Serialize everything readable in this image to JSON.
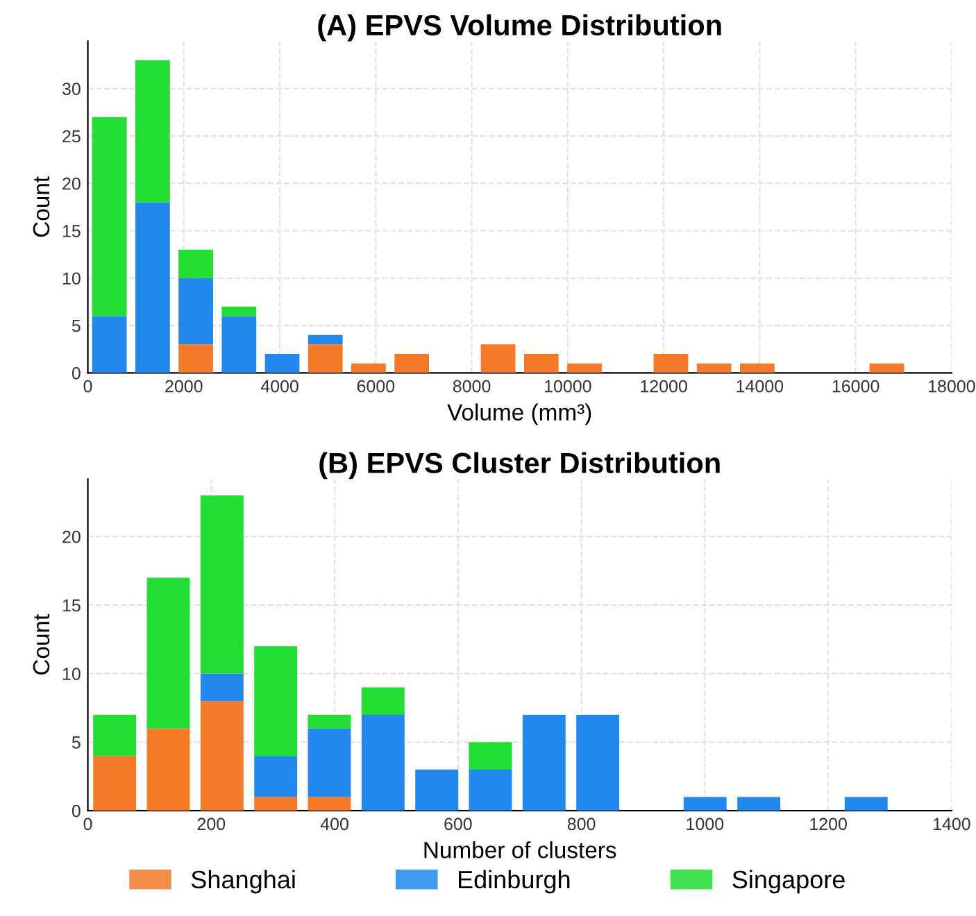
{
  "chart_data": [
    {
      "type": "bar",
      "title": "(A) EPVS Volume Distribution",
      "xlabel": "Volume (mm³)",
      "ylabel": "Count",
      "stacked": true,
      "x": [
        450,
        1350,
        2250,
        3150,
        4050,
        4950,
        5850,
        6750,
        7650,
        8550,
        9450,
        10350,
        11250,
        12150,
        13050,
        13950,
        14850,
        15750,
        16650
      ],
      "series": [
        {
          "name": "Shanghai",
          "color": "#f47a2a",
          "values": [
            0,
            0,
            3,
            0,
            0,
            3,
            1,
            2,
            0,
            3,
            2,
            1,
            0,
            2,
            1,
            1,
            0,
            0,
            1
          ]
        },
        {
          "name": "Edinburgh",
          "color": "#2288ee",
          "values": [
            6,
            18,
            7,
            6,
            2,
            1,
            0,
            0,
            0,
            0,
            0,
            0,
            0,
            0,
            0,
            0,
            0,
            0,
            0
          ]
        },
        {
          "name": "Singapore",
          "color": "#22dd33",
          "values": [
            21,
            15,
            3,
            1,
            0,
            0,
            0,
            0,
            0,
            0,
            0,
            0,
            0,
            0,
            0,
            0,
            0,
            0,
            0
          ]
        }
      ],
      "xlim": [
        0,
        18000
      ],
      "xticks": [
        0,
        2000,
        4000,
        6000,
        8000,
        10000,
        12000,
        14000,
        16000,
        18000
      ],
      "ylim": [
        0,
        35
      ],
      "yticks": [
        0,
        5,
        10,
        15,
        20,
        25,
        30
      ],
      "grid": true,
      "legend": "bottom"
    },
    {
      "type": "bar",
      "title": "(B) EPVS Cluster Distribution",
      "xlabel": "Number of clusters",
      "ylabel": "Count",
      "stacked": true,
      "x": [
        43.5,
        130.5,
        217.5,
        304.5,
        391.5,
        478.5,
        565.5,
        652.5,
        739.5,
        826.5,
        913.5,
        1000.5,
        1087.5,
        1174.5,
        1261.5
      ],
      "series": [
        {
          "name": "Shanghai",
          "color": "#f47a2a",
          "values": [
            4,
            6,
            8,
            1,
            1,
            0,
            0,
            0,
            0,
            0,
            0,
            0,
            0,
            0,
            0
          ]
        },
        {
          "name": "Edinburgh",
          "color": "#2288ee",
          "values": [
            0,
            0,
            2,
            3,
            5,
            7,
            3,
            3,
            7,
            7,
            0,
            1,
            1,
            0,
            1
          ]
        },
        {
          "name": "Singapore",
          "color": "#22dd33",
          "values": [
            3,
            11,
            13,
            8,
            1,
            2,
            0,
            2,
            0,
            0,
            0,
            0,
            0,
            0,
            0
          ]
        }
      ],
      "xlim": [
        0,
        1400
      ],
      "xticks": [
        0,
        200,
        400,
        600,
        800,
        1000,
        1200,
        1400
      ],
      "ylim": [
        0,
        24.2
      ],
      "yticks": [
        0,
        5,
        10,
        15,
        20
      ],
      "grid": true,
      "legend": "bottom"
    }
  ]
}
